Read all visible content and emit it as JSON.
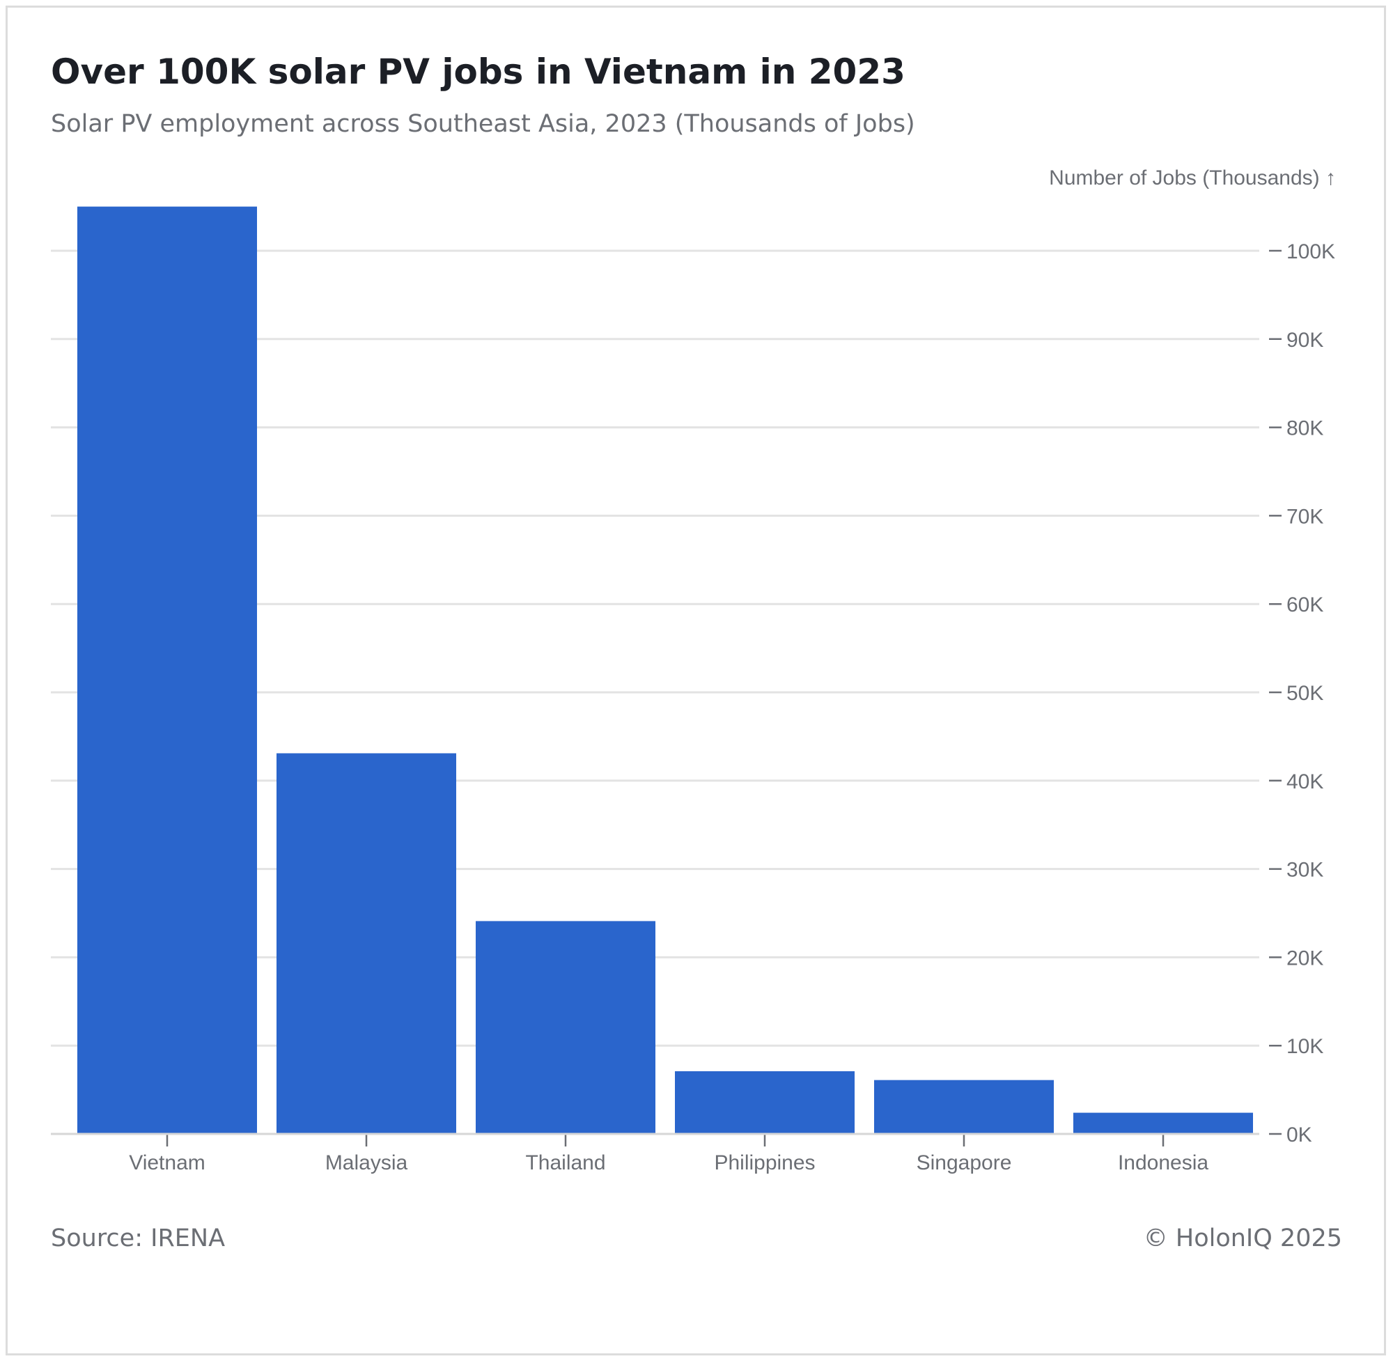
{
  "chart_data": {
    "type": "bar",
    "title": "Over 100K solar PV jobs in Vietnam in 2023",
    "subtitle": "Solar PV employment across Southeast Asia, 2023 (Thousands of Jobs)",
    "ylabel": "Number of Jobs (Thousands) ↑",
    "xlabel": "",
    "categories": [
      "Vietnam",
      "Malaysia",
      "Thailand",
      "Philippines",
      "Singapore",
      "Indonesia"
    ],
    "values": [
      105,
      43.1,
      24.1,
      7.1,
      6.1,
      2.4
    ],
    "ylim": [
      0,
      100
    ],
    "yticks": [
      0,
      10,
      20,
      30,
      40,
      50,
      60,
      70,
      80,
      90,
      100
    ],
    "ytick_labels": [
      "0K",
      "10K",
      "20K",
      "30K",
      "40K",
      "50K",
      "60K",
      "70K",
      "80K",
      "90K",
      "100K"
    ],
    "grid": true,
    "bar_color": "#2a65cc",
    "y_axis_side": "right"
  },
  "footer": {
    "source": "Source: IRENA",
    "copyright": "© HolonIQ 2025"
  }
}
